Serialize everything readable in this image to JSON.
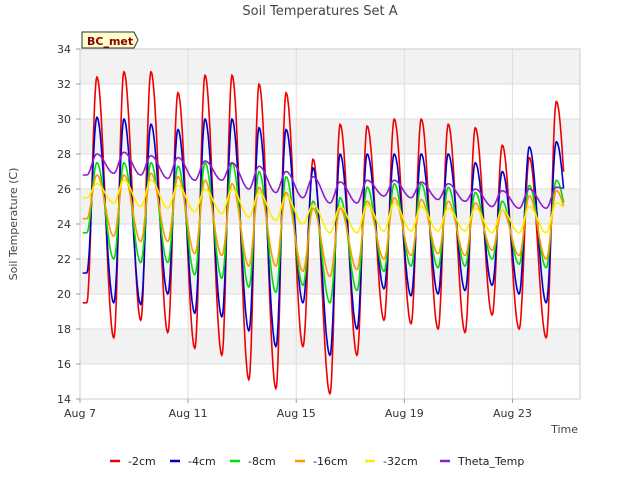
{
  "chart_data": {
    "type": "line",
    "title": "Soil Temperatures Set A",
    "xlabel": "Time",
    "ylabel": "Soil Temperature (C)",
    "site_badge": "BC_met",
    "ylim": [
      14,
      34
    ],
    "yticks": [
      14,
      16,
      18,
      20,
      22,
      24,
      26,
      28,
      30,
      32,
      34
    ],
    "xlim_days": [
      7,
      25.5
    ],
    "x_unit": "day of month (August)",
    "xticks": [
      {
        "day": 7,
        "label": "Aug 7"
      },
      {
        "day": 11,
        "label": "Aug 11"
      },
      {
        "day": 15,
        "label": "Aug 15"
      },
      {
        "day": 19,
        "label": "Aug 19"
      },
      {
        "day": 23,
        "label": "Aug 23"
      }
    ],
    "grid": true,
    "legend_position": "bottom",
    "daily_min_hour": 6,
    "daily_max_hour": 15,
    "series": [
      {
        "name": "-2cm",
        "color": "#ee0000",
        "min": [
          19.5,
          17.5,
          18.5,
          17.8,
          16.9,
          16.5,
          15.1,
          14.6,
          17.0,
          14.3,
          16.5,
          18.5,
          18.3,
          18.0,
          17.8,
          18.8,
          18.0,
          17.5,
          20.6
        ],
        "max": [
          32.4,
          32.7,
          32.7,
          31.5,
          32.5,
          32.5,
          32.0,
          31.5,
          27.7,
          29.7,
          29.6,
          30.0,
          30.0,
          29.7,
          29.5,
          28.5,
          27.8,
          31.0
        ]
      },
      {
        "name": "-4cm",
        "color": "#0000cc",
        "min": [
          21.2,
          19.5,
          19.4,
          20.0,
          18.9,
          18.7,
          17.9,
          17.0,
          19.5,
          16.5,
          18.0,
          20.3,
          19.9,
          20.0,
          20.2,
          20.5,
          20.0,
          19.5,
          21.8
        ],
        "max": [
          30.1,
          30.0,
          29.7,
          29.4,
          30.0,
          30.0,
          29.5,
          29.4,
          27.2,
          28.0,
          28.0,
          28.0,
          28.0,
          28.0,
          27.5,
          27.0,
          28.4,
          28.7
        ]
      },
      {
        "name": "-8cm",
        "color": "#00dd00",
        "min": [
          23.5,
          22.0,
          21.8,
          21.8,
          21.1,
          20.9,
          20.4,
          20.1,
          20.5,
          19.5,
          20.2,
          21.3,
          21.6,
          21.5,
          21.6,
          22.0,
          21.7,
          21.5,
          23.2
        ],
        "max": [
          27.5,
          27.5,
          27.5,
          27.3,
          27.5,
          27.5,
          27.0,
          26.7,
          25.3,
          25.5,
          26.1,
          26.3,
          26.3,
          26.1,
          25.8,
          25.3,
          26.2,
          26.5
        ]
      },
      {
        "name": "-16cm",
        "color": "#ff9900",
        "min": [
          24.3,
          23.3,
          23.0,
          23.0,
          22.3,
          22.2,
          21.6,
          21.6,
          21.3,
          21.0,
          21.4,
          22.0,
          22.2,
          22.3,
          22.2,
          22.5,
          22.2,
          22.0,
          23.6
        ],
        "max": [
          26.8,
          26.8,
          26.9,
          26.7,
          26.5,
          26.3,
          26.1,
          25.8,
          24.9,
          24.9,
          25.3,
          25.5,
          25.4,
          25.3,
          25.2,
          24.8,
          25.6,
          25.9
        ]
      },
      {
        "name": "-32cm",
        "color": "#ffee00",
        "min": [
          25.5,
          25.2,
          25.0,
          24.9,
          24.7,
          24.6,
          24.4,
          24.2,
          24.0,
          23.5,
          23.5,
          23.6,
          23.6,
          23.6,
          23.6,
          23.5,
          23.5,
          23.5,
          24.6
        ],
        "max": [
          26.3,
          26.5,
          26.5,
          26.2,
          26.0,
          26.0,
          25.8,
          25.6,
          25.1,
          25.0,
          25.1,
          25.2,
          25.0,
          24.9,
          24.9,
          24.8,
          25.0,
          25.2
        ]
      },
      {
        "name": "Theta_Temp",
        "color": "#8b1fd1",
        "min": [
          26.8,
          26.9,
          26.8,
          26.6,
          26.5,
          26.5,
          26.0,
          25.8,
          25.5,
          25.2,
          25.2,
          25.6,
          25.5,
          25.4,
          25.3,
          25.0,
          24.9,
          24.9,
          25.9
        ],
        "max": [
          28.0,
          28.1,
          27.9,
          27.8,
          27.6,
          27.5,
          27.3,
          27.0,
          26.7,
          26.4,
          26.5,
          26.5,
          26.4,
          26.3,
          26.0,
          25.9,
          26.0,
          26.1
        ]
      }
    ]
  }
}
